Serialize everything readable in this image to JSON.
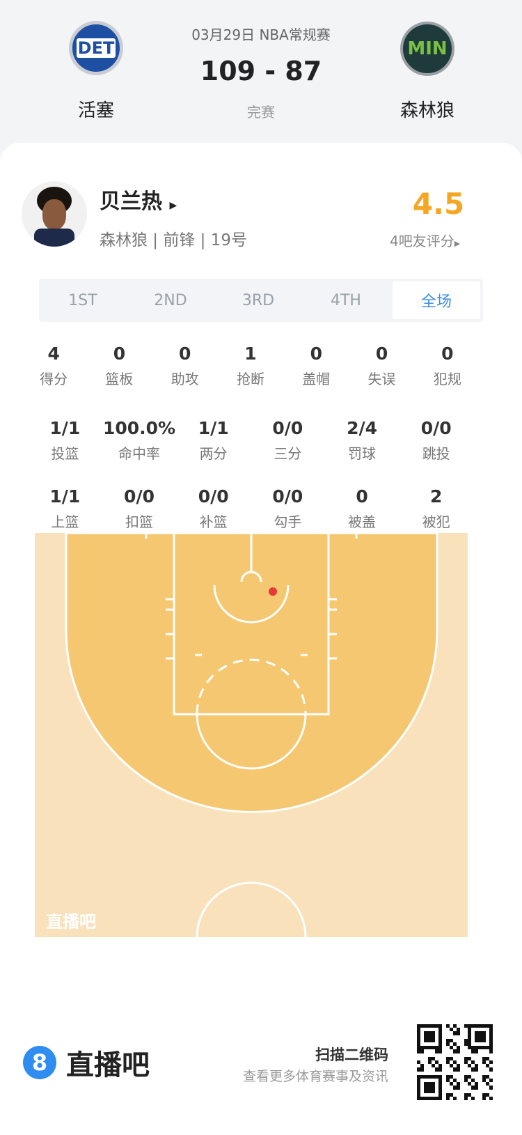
{
  "match": {
    "date_league": "03月29日 NBA常规赛",
    "score": "109 - 87",
    "status": "完赛",
    "home": {
      "name": "活塞",
      "abbr": "DET"
    },
    "away": {
      "name": "森林狼",
      "abbr": "MIN"
    }
  },
  "player": {
    "name": "贝兰热",
    "info": "森林狼 | 前锋 | 19号",
    "rating": "4.5",
    "rating_label": "4吧友评分"
  },
  "tabs": [
    {
      "label": "1ST"
    },
    {
      "label": "2ND"
    },
    {
      "label": "3RD"
    },
    {
      "label": "4TH"
    },
    {
      "label": "全场",
      "active": true
    }
  ],
  "stats_rows": [
    [
      {
        "v": "4",
        "l": "得分"
      },
      {
        "v": "0",
        "l": "篮板"
      },
      {
        "v": "0",
        "l": "助攻"
      },
      {
        "v": "1",
        "l": "抢断"
      },
      {
        "v": "0",
        "l": "盖帽"
      },
      {
        "v": "0",
        "l": "失误"
      },
      {
        "v": "0",
        "l": "犯规"
      }
    ],
    [
      {
        "v": "1/1",
        "l": "投篮"
      },
      {
        "v": "100.0%",
        "l": "命中率"
      },
      {
        "v": "1/1",
        "l": "两分"
      },
      {
        "v": "0/0",
        "l": "三分"
      },
      {
        "v": "2/4",
        "l": "罚球"
      },
      {
        "v": "0/0",
        "l": "跳投"
      }
    ],
    [
      {
        "v": "1/1",
        "l": "上篮"
      },
      {
        "v": "0/0",
        "l": "扣篮"
      },
      {
        "v": "0/0",
        "l": "补篮"
      },
      {
        "v": "0/0",
        "l": "勾手"
      },
      {
        "v": "0",
        "l": "被盖"
      },
      {
        "v": "2",
        "l": "被犯"
      }
    ]
  ],
  "court": {
    "watermark": "直播吧",
    "shots": [
      {
        "made": true,
        "color": "#e53935"
      }
    ]
  },
  "footer": {
    "brand": "直播吧",
    "scan": "扫描二维码",
    "sub": "查看更多体育赛事及资讯"
  },
  "colors": {
    "accent": "#3a8ee6",
    "rating": "#f5a623",
    "court_inner": "#f5c770",
    "court_outer": "#f8e1bb"
  }
}
